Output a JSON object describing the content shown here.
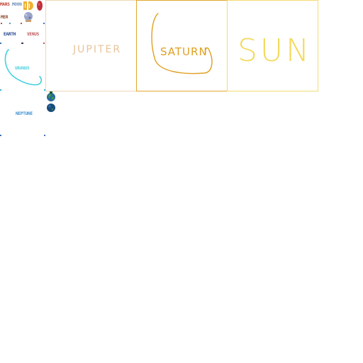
{
  "sprite_sheet": {
    "mars_label": "MARS",
    "moon_label": "MOON",
    "mercury_label": "MER",
    "earth_label": "EARTH",
    "venus_label": "VENUS",
    "uranus_label": "URANUS",
    "neptune_label": "NEPTUNE"
  },
  "panels": [
    {
      "label": "JUPITER",
      "color": "#e8c49a"
    },
    {
      "label": "SATURN",
      "color": "#e0a020"
    },
    {
      "label": "SUN",
      "color": "#f3da5c"
    }
  ],
  "colors": {
    "mars": "#c0392b",
    "moon": "#6b8fb5",
    "mercury": "#8a4a2a",
    "earth": "#1a3e8a",
    "venus": "#c05a5a",
    "uranus": "#4fd0e0",
    "neptune": "#3a8fd0"
  }
}
